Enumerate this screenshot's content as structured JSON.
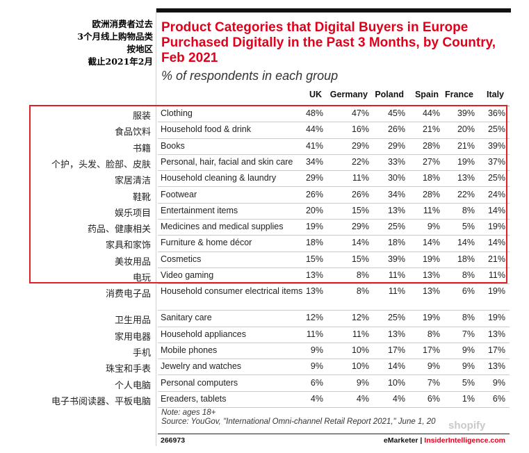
{
  "cn_heading": [
    "欧洲消费者过去",
    "3个月线上购物品类",
    "按地区",
    "截止2021年2月"
  ],
  "chart_data": {
    "type": "table",
    "title": "Product Categories that Digital Buyers in Europe Purchased Digitally in the Past 3 Months, by Country, Feb 2021",
    "subtitle": "% of respondents in each group",
    "columns": [
      "UK",
      "Germany",
      "Poland",
      "Spain",
      "France",
      "Italy"
    ],
    "rows": [
      {
        "cn": "服装",
        "label": "Clothing",
        "values": [
          "48%",
          "47%",
          "45%",
          "44%",
          "39%",
          "36%"
        ]
      },
      {
        "cn": "食品饮料",
        "label": "Household food & drink",
        "values": [
          "44%",
          "16%",
          "26%",
          "21%",
          "20%",
          "25%"
        ]
      },
      {
        "cn": "书籍",
        "label": "Books",
        "values": [
          "41%",
          "29%",
          "29%",
          "28%",
          "21%",
          "39%"
        ]
      },
      {
        "cn": "个护，头发、脸部、皮肤",
        "label": "Personal, hair, facial and skin care",
        "values": [
          "34%",
          "22%",
          "33%",
          "27%",
          "19%",
          "37%"
        ]
      },
      {
        "cn": "家居清洁",
        "label": "Household cleaning & laundry",
        "values": [
          "29%",
          "11%",
          "30%",
          "18%",
          "13%",
          "25%"
        ]
      },
      {
        "cn": "鞋靴",
        "label": "Footwear",
        "values": [
          "26%",
          "26%",
          "34%",
          "28%",
          "22%",
          "24%"
        ]
      },
      {
        "cn": "娱乐项目",
        "label": "Entertainment items",
        "values": [
          "20%",
          "15%",
          "13%",
          "11%",
          "8%",
          "14%"
        ]
      },
      {
        "cn": "药品、健康相关",
        "label": "Medicines and medical supplies",
        "values": [
          "19%",
          "29%",
          "25%",
          "9%",
          "5%",
          "19%"
        ]
      },
      {
        "cn": "家具和家饰",
        "label": "Furniture & home décor",
        "values": [
          "18%",
          "14%",
          "18%",
          "14%",
          "14%",
          "14%"
        ]
      },
      {
        "cn": "美妆用品",
        "label": "Cosmetics",
        "values": [
          "15%",
          "15%",
          "39%",
          "19%",
          "18%",
          "21%"
        ]
      },
      {
        "cn": "电玩",
        "label": "Video gaming",
        "values": [
          "13%",
          "8%",
          "11%",
          "13%",
          "8%",
          "11%"
        ]
      },
      {
        "cn": "消费电子品",
        "label": "Household consumer electrical items",
        "values": [
          "13%",
          "8%",
          "11%",
          "13%",
          "6%",
          "19%"
        ]
      },
      {
        "cn": "卫生用品",
        "label": "Sanitary care",
        "values": [
          "12%",
          "12%",
          "25%",
          "19%",
          "8%",
          "19%"
        ]
      },
      {
        "cn": "家用电器",
        "label": "Household appliances",
        "values": [
          "11%",
          "11%",
          "13%",
          "8%",
          "7%",
          "13%"
        ]
      },
      {
        "cn": "手机",
        "label": "Mobile phones",
        "values": [
          "9%",
          "10%",
          "17%",
          "17%",
          "9%",
          "17%"
        ]
      },
      {
        "cn": "珠宝和手表",
        "label": "Jewelry and watches",
        "values": [
          "9%",
          "10%",
          "14%",
          "9%",
          "9%",
          "13%"
        ]
      },
      {
        "cn": "个人电脑",
        "label": "Personal computers",
        "values": [
          "6%",
          "9%",
          "10%",
          "7%",
          "5%",
          "9%"
        ]
      },
      {
        "cn": "电子书阅读器、平板电脑",
        "label": "Ereaders, tablets",
        "values": [
          "4%",
          "4%",
          "4%",
          "6%",
          "1%",
          "6%"
        ]
      }
    ]
  },
  "note": "Note: ages 18+",
  "source": "Source: YouGov, \"International Omni-channel Retail Report 2021,\" June 1, 20",
  "footer": {
    "id": "266973",
    "brand_a": "eMarketer",
    "sep": " | ",
    "brand_b": "InsiderIntelligence.com"
  },
  "watermark": "shopify",
  "colors": {
    "accent": "#e3001b",
    "highlight": "#e21e26"
  }
}
